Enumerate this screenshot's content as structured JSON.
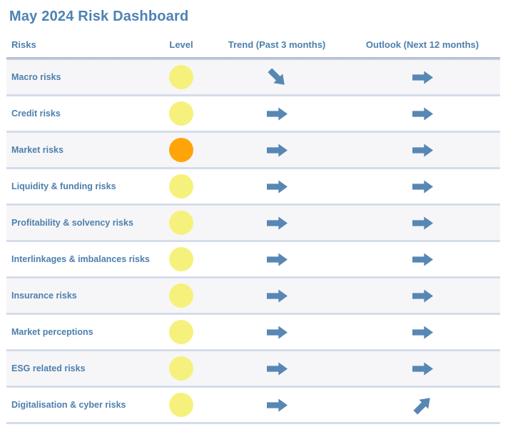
{
  "title": "May 2024 Risk Dashboard",
  "colors": {
    "title_text": "#4d82b4",
    "header_text": "#4d7fae",
    "row_label_text": "#4d7fae",
    "arrow_blue": "#5787b4",
    "level_yellow": "#f6f17c",
    "level_orange": "#ffa408",
    "row_alt_background": "#f6f6f8",
    "row_separator": "#d5dcea"
  },
  "table": {
    "columns": [
      "Risks",
      "Level",
      "Trend (Past 3 months)",
      "Outlook (Next 12 months)"
    ],
    "rows": [
      {
        "risk": "Macro risks",
        "level_color": "#f6f17c",
        "level_name": "yellow",
        "trend": "down-right",
        "outlook": "right"
      },
      {
        "risk": "Credit risks",
        "level_color": "#f6f17c",
        "level_name": "yellow",
        "trend": "right",
        "outlook": "right"
      },
      {
        "risk": "Market risks",
        "level_color": "#ffa408",
        "level_name": "orange",
        "trend": "right",
        "outlook": "right"
      },
      {
        "risk": "Liquidity & funding risks",
        "level_color": "#f6f17c",
        "level_name": "yellow",
        "trend": "right",
        "outlook": "right"
      },
      {
        "risk": "Profitability & solvency risks",
        "level_color": "#f6f17c",
        "level_name": "yellow",
        "trend": "right",
        "outlook": "right"
      },
      {
        "risk": "Interlinkages & imbalances risks",
        "level_color": "#f6f17c",
        "level_name": "yellow",
        "trend": "right",
        "outlook": "right"
      },
      {
        "risk": "Insurance risks",
        "level_color": "#f6f17c",
        "level_name": "yellow",
        "trend": "right",
        "outlook": "right"
      },
      {
        "risk": "Market perceptions",
        "level_color": "#f6f17c",
        "level_name": "yellow",
        "trend": "right",
        "outlook": "right"
      },
      {
        "risk": "ESG related risks",
        "level_color": "#f6f17c",
        "level_name": "yellow",
        "trend": "right",
        "outlook": "right"
      },
      {
        "risk": "Digitalisation & cyber risks",
        "level_color": "#f6f17c",
        "level_name": "yellow",
        "trend": "right",
        "outlook": "up-right"
      }
    ]
  }
}
